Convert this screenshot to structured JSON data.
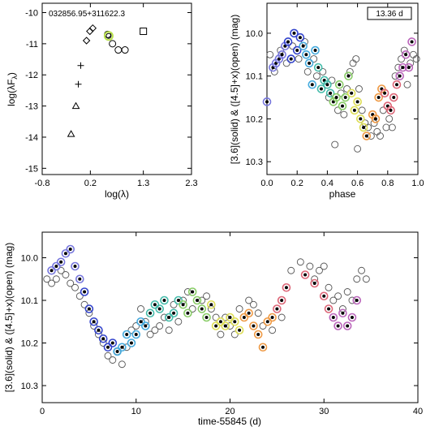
{
  "chart_data": [
    {
      "type": "scatter",
      "title": "032856.95+311622.3",
      "xlabel": "log(λ)",
      "ylabel": "log(λFλ)",
      "xlim": [
        -0.8,
        2.3
      ],
      "ylim": [
        -15.2,
        -9.7
      ],
      "xticks": [
        -0.8,
        0.2,
        1.3,
        2.3
      ],
      "yticks": [
        -10,
        -11,
        -12,
        -13,
        -14,
        -15
      ],
      "series": [
        {
          "marker": "triangle",
          "points": [
            [
              -0.2,
              -13.9
            ],
            [
              -0.1,
              -13.0
            ]
          ]
        },
        {
          "marker": "plus",
          "points": [
            [
              -0.05,
              -12.3
            ],
            [
              0.0,
              -11.7
            ]
          ]
        },
        {
          "marker": "diamond",
          "points": [
            [
              0.12,
              -10.9
            ],
            [
              0.19,
              -10.6
            ],
            [
              0.25,
              -10.5
            ]
          ]
        },
        {
          "marker": "circle",
          "points": [
            [
              0.56,
              -10.7
            ],
            [
              0.66,
              -11.0
            ],
            [
              0.78,
              -11.2
            ],
            [
              0.92,
              -11.2
            ]
          ]
        },
        {
          "marker": "circle-highlight",
          "color": "#b8e04a",
          "points": [
            [
              0.58,
              -10.75
            ]
          ]
        },
        {
          "marker": "square",
          "points": [
            [
              1.3,
              -10.6
            ]
          ]
        }
      ]
    },
    {
      "type": "scatter",
      "title": "",
      "annotation": "13.36 d",
      "xlabel": "phase",
      "ylabel": "[3.6](solid) & ([4.5]+x)(open) (mag)",
      "xlim": [
        0,
        1
      ],
      "ylim": [
        10.33,
        9.93
      ],
      "y_inverted": true,
      "xticks": [
        0.0,
        0.2,
        0.4,
        0.6,
        0.8,
        1.0
      ],
      "yticks": [
        10.0,
        10.1,
        10.2,
        10.3
      ],
      "series": [
        {
          "name": "solid",
          "points": [
            [
              0.0,
              10.16
            ],
            [
              0.04,
              10.08
            ],
            [
              0.06,
              10.07
            ],
            [
              0.08,
              10.06
            ],
            [
              0.1,
              10.05
            ],
            [
              0.12,
              10.03
            ],
            [
              0.14,
              10.02
            ],
            [
              0.16,
              10.06
            ],
            [
              0.18,
              10.0
            ],
            [
              0.2,
              10.04
            ],
            [
              0.22,
              10.01
            ],
            [
              0.24,
              10.03
            ],
            [
              0.26,
              10.05
            ],
            [
              0.28,
              10.07
            ],
            [
              0.3,
              10.12
            ],
            [
              0.32,
              10.04
            ],
            [
              0.34,
              10.08
            ],
            [
              0.36,
              10.13
            ],
            [
              0.38,
              10.11
            ],
            [
              0.4,
              10.12
            ],
            [
              0.42,
              10.14
            ],
            [
              0.44,
              10.16
            ],
            [
              0.46,
              10.15
            ],
            [
              0.48,
              10.12
            ],
            [
              0.5,
              10.17
            ],
            [
              0.52,
              10.15
            ],
            [
              0.54,
              10.1
            ],
            [
              0.56,
              10.14
            ],
            [
              0.58,
              10.18
            ],
            [
              0.6,
              10.16
            ],
            [
              0.62,
              10.2
            ],
            [
              0.64,
              10.22
            ],
            [
              0.66,
              10.24
            ],
            [
              0.7,
              10.19
            ],
            [
              0.72,
              10.2
            ],
            [
              0.74,
              10.15
            ],
            [
              0.76,
              10.13
            ],
            [
              0.78,
              10.14
            ],
            [
              0.8,
              10.17
            ],
            [
              0.82,
              10.18
            ],
            [
              0.84,
              10.15
            ],
            [
              0.86,
              10.12
            ],
            [
              0.88,
              10.1
            ],
            [
              0.9,
              10.08
            ],
            [
              0.92,
              10.05
            ],
            [
              0.94,
              10.08
            ],
            [
              0.96,
              10.02
            ]
          ]
        },
        {
          "name": "open",
          "points": [
            [
              0.02,
              10.05
            ],
            [
              0.05,
              10.09
            ],
            [
              0.09,
              10.04
            ],
            [
              0.13,
              10.07
            ],
            [
              0.17,
              10.03
            ],
            [
              0.21,
              10.06
            ],
            [
              0.25,
              10.02
            ],
            [
              0.27,
              10.09
            ],
            [
              0.31,
              10.06
            ],
            [
              0.33,
              10.1
            ],
            [
              0.37,
              10.09
            ],
            [
              0.41,
              10.15
            ],
            [
              0.43,
              10.11
            ],
            [
              0.47,
              10.18
            ],
            [
              0.49,
              10.14
            ],
            [
              0.51,
              10.19
            ],
            [
              0.53,
              10.13
            ],
            [
              0.55,
              10.09
            ],
            [
              0.57,
              10.07
            ],
            [
              0.59,
              10.06
            ],
            [
              0.61,
              10.13
            ],
            [
              0.63,
              10.18
            ],
            [
              0.65,
              10.21
            ],
            [
              0.67,
              10.22
            ],
            [
              0.69,
              10.24
            ],
            [
              0.71,
              10.21
            ],
            [
              0.73,
              10.23
            ],
            [
              0.77,
              10.18
            ],
            [
              0.79,
              10.22
            ],
            [
              0.81,
              10.2
            ],
            [
              0.83,
              10.22
            ],
            [
              0.85,
              10.1
            ],
            [
              0.87,
              10.08
            ],
            [
              0.89,
              10.06
            ],
            [
              0.91,
              10.04
            ],
            [
              0.93,
              10.12
            ],
            [
              0.95,
              10.07
            ],
            [
              0.97,
              10.05
            ],
            [
              0.99,
              10.06
            ],
            [
              0.45,
              10.26
            ],
            [
              0.6,
              10.27
            ],
            [
              0.75,
              10.24
            ]
          ]
        }
      ]
    },
    {
      "type": "scatter",
      "title": "",
      "xlabel": "time-55845 (d)",
      "ylabel": "[3.6](solid) & ([4.5]+x)(open) (mag)",
      "xlim": [
        0,
        40
      ],
      "ylim": [
        10.34,
        9.94
      ],
      "y_inverted": true,
      "xticks": [
        0,
        10,
        20,
        30,
        40
      ],
      "yticks": [
        10.0,
        10.1,
        10.2,
        10.3
      ],
      "series": [
        {
          "name": "solid",
          "points": [
            [
              1.0,
              10.03
            ],
            [
              1.5,
              10.02
            ],
            [
              2.0,
              10.01
            ],
            [
              2.5,
              9.99
            ],
            [
              3.0,
              9.98
            ],
            [
              3.5,
              10.02
            ],
            [
              4.0,
              10.05
            ],
            [
              4.5,
              10.08
            ],
            [
              5.0,
              10.12
            ],
            [
              5.5,
              10.15
            ],
            [
              6.0,
              10.17
            ],
            [
              6.5,
              10.19
            ],
            [
              7.0,
              10.21
            ],
            [
              7.5,
              10.2
            ],
            [
              8.0,
              10.22
            ],
            [
              8.5,
              10.21
            ],
            [
              9.0,
              10.18
            ],
            [
              9.5,
              10.2
            ],
            [
              10.0,
              10.18
            ],
            [
              10.5,
              10.15
            ],
            [
              11.0,
              10.16
            ],
            [
              11.5,
              10.13
            ],
            [
              12.0,
              10.11
            ],
            [
              12.5,
              10.12
            ],
            [
              13.0,
              10.1
            ],
            [
              13.5,
              10.14
            ],
            [
              14.0,
              10.13
            ],
            [
              14.5,
              10.1
            ],
            [
              15.0,
              10.11
            ],
            [
              15.5,
              10.13
            ],
            [
              16.0,
              10.08
            ],
            [
              16.5,
              10.1
            ],
            [
              17.0,
              10.12
            ],
            [
              17.5,
              10.14
            ],
            [
              18.0,
              10.11
            ],
            [
              18.5,
              10.16
            ],
            [
              19.0,
              10.15
            ],
            [
              19.5,
              10.16
            ],
            [
              20.0,
              10.14
            ],
            [
              20.5,
              10.15
            ],
            [
              21.0,
              10.17
            ],
            [
              21.5,
              10.14
            ],
            [
              22.0,
              10.13
            ],
            [
              22.5,
              10.16
            ],
            [
              23.0,
              10.18
            ],
            [
              23.5,
              10.21
            ],
            [
              24.0,
              10.15
            ],
            [
              24.5,
              10.14
            ],
            [
              25.0,
              10.12
            ],
            [
              25.5,
              10.1
            ],
            [
              26.0,
              10.07
            ],
            [
              28.0,
              10.04
            ],
            [
              29.0,
              10.06
            ],
            [
              30.0,
              10.09
            ],
            [
              30.5,
              10.12
            ],
            [
              31.0,
              10.14
            ],
            [
              31.5,
              10.16
            ],
            [
              32.0,
              10.13
            ],
            [
              32.5,
              10.16
            ],
            [
              33.0,
              10.14
            ],
            [
              33.5,
              10.1
            ]
          ]
        },
        {
          "name": "open",
          "points": [
            [
              0.5,
              10.05
            ],
            [
              1.0,
              10.06
            ],
            [
              1.5,
              10.05
            ],
            [
              2.0,
              10.03
            ],
            [
              2.5,
              10.04
            ],
            [
              3.0,
              10.06
            ],
            [
              3.5,
              10.07
            ],
            [
              4.0,
              10.09
            ],
            [
              4.5,
              10.11
            ],
            [
              5.0,
              10.13
            ],
            [
              5.5,
              10.16
            ],
            [
              6.0,
              10.18
            ],
            [
              6.5,
              10.2
            ],
            [
              7.0,
              10.23
            ],
            [
              7.5,
              10.24
            ],
            [
              8.0,
              10.22
            ],
            [
              8.5,
              10.25
            ],
            [
              9.0,
              10.21
            ],
            [
              9.5,
              10.17
            ],
            [
              10.0,
              10.16
            ],
            [
              10.5,
              10.12
            ],
            [
              11.0,
              10.15
            ],
            [
              11.5,
              10.18
            ],
            [
              12.0,
              10.17
            ],
            [
              12.5,
              10.16
            ],
            [
              13.0,
              10.14
            ],
            [
              13.5,
              10.17
            ],
            [
              14.0,
              10.11
            ],
            [
              14.5,
              10.15
            ],
            [
              15.0,
              10.1
            ],
            [
              15.5,
              10.08
            ],
            [
              16.0,
              10.12
            ],
            [
              17.0,
              10.1
            ],
            [
              17.5,
              10.09
            ],
            [
              18.0,
              10.12
            ],
            [
              18.5,
              10.14
            ],
            [
              19.0,
              10.18
            ],
            [
              19.5,
              10.14
            ],
            [
              20.0,
              10.16
            ],
            [
              20.5,
              10.18
            ],
            [
              21.0,
              10.12
            ],
            [
              22.0,
              10.1
            ],
            [
              22.5,
              10.11
            ],
            [
              23.0,
              10.13
            ],
            [
              23.5,
              10.16
            ],
            [
              24.5,
              10.17
            ],
            [
              25.5,
              10.14
            ],
            [
              26.5,
              10.03
            ],
            [
              27.5,
              10.01
            ],
            [
              28.5,
              10.02
            ],
            [
              29.0,
              10.05
            ],
            [
              29.5,
              10.03
            ],
            [
              30.0,
              10.02
            ],
            [
              30.5,
              10.07
            ],
            [
              31.0,
              10.1
            ],
            [
              31.5,
              10.09
            ],
            [
              32.0,
              10.12
            ],
            [
              32.5,
              10.08
            ],
            [
              33.0,
              10.1
            ],
            [
              33.5,
              10.05
            ],
            [
              34.0,
              10.03
            ],
            [
              34.5,
              10.05
            ]
          ]
        }
      ]
    }
  ]
}
